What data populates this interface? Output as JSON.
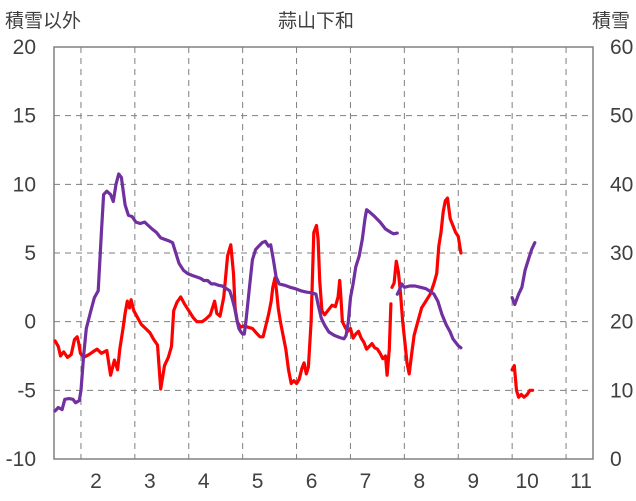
{
  "chart_data": {
    "type": "line",
    "title": "蒜山下和",
    "y_left_label": "積雪以外",
    "y_right_label": "積雪",
    "y_left_range": [
      -10,
      20
    ],
    "y_left_ticks": [
      -10,
      -5,
      0,
      5,
      10,
      15,
      20
    ],
    "y_right_range": [
      0,
      60
    ],
    "y_right_ticks": [
      0,
      10,
      20,
      30,
      40,
      50,
      60
    ],
    "x_range": [
      1.5,
      11.5
    ],
    "x_ticks": [
      2,
      3,
      4,
      5,
      6,
      7,
      8,
      9,
      10,
      11
    ],
    "x_tick_labels": [
      "2",
      "3",
      "4",
      "5",
      "6",
      "7",
      "8",
      "9",
      "10",
      "11"
    ],
    "grid": true,
    "colors": {
      "red_series": "#ff0000",
      "purple_series": "#7030a0",
      "grid": "#7f7f7f",
      "frame": "#808080"
    },
    "series": [
      {
        "axis": "left",
        "color": "#ff0000",
        "segments": [
          [
            [
              1.52,
              -1.4
            ],
            [
              1.58,
              -1.8
            ],
            [
              1.62,
              -2.5
            ],
            [
              1.68,
              -2.2
            ],
            [
              1.75,
              -2.6
            ],
            [
              1.82,
              -2.4
            ],
            [
              1.88,
              -1.3
            ],
            [
              1.93,
              -1.1
            ],
            [
              1.96,
              -1.6
            ],
            [
              1.99,
              -2.3
            ],
            [
              2.05,
              -2.6
            ],
            [
              2.15,
              -2.4
            ],
            [
              2.22,
              -2.2
            ],
            [
              2.3,
              -2.0
            ],
            [
              2.38,
              -2.3
            ],
            [
              2.48,
              -2.1
            ],
            [
              2.55,
              -3.9
            ],
            [
              2.62,
              -2.8
            ],
            [
              2.68,
              -3.5
            ],
            [
              2.72,
              -2.0
            ],
            [
              2.78,
              -0.5
            ],
            [
              2.82,
              0.6
            ],
            [
              2.86,
              1.5
            ],
            [
              2.9,
              1.0
            ],
            [
              2.93,
              1.6
            ],
            [
              2.98,
              0.8
            ],
            [
              3.05,
              0.3
            ],
            [
              3.12,
              -0.2
            ],
            [
              3.2,
              -0.5
            ],
            [
              3.28,
              -0.8
            ],
            [
              3.35,
              -1.3
            ],
            [
              3.42,
              -1.7
            ],
            [
              3.48,
              -4.9
            ],
            [
              3.55,
              -3.2
            ],
            [
              3.62,
              -2.6
            ],
            [
              3.68,
              -1.8
            ],
            [
              3.72,
              0.8
            ],
            [
              3.78,
              1.4
            ],
            [
              3.85,
              1.8
            ],
            [
              3.92,
              1.3
            ],
            [
              4.0,
              0.8
            ],
            [
              4.08,
              0.3
            ],
            [
              4.15,
              0.0
            ],
            [
              4.25,
              0.0
            ],
            [
              4.32,
              0.2
            ],
            [
              4.4,
              0.5
            ],
            [
              4.48,
              1.5
            ],
            [
              4.52,
              0.6
            ],
            [
              4.58,
              0.4
            ],
            [
              4.65,
              1.8
            ],
            [
              4.72,
              4.8
            ],
            [
              4.78,
              5.6
            ],
            [
              4.83,
              3.5
            ],
            [
              4.86,
              1.0
            ],
            [
              4.9,
              0.0
            ],
            [
              4.96,
              -0.4
            ],
            [
              5.03,
              -0.3
            ],
            [
              5.1,
              -0.4
            ],
            [
              5.18,
              -0.5
            ],
            [
              5.25,
              -0.8
            ],
            [
              5.32,
              -1.1
            ],
            [
              5.38,
              -1.1
            ],
            [
              5.43,
              -0.3
            ],
            [
              5.48,
              0.5
            ],
            [
              5.53,
              1.5
            ],
            [
              5.56,
              2.5
            ],
            [
              5.6,
              3.2
            ],
            [
              5.63,
              2.2
            ],
            [
              5.66,
              1.0
            ],
            [
              5.7,
              0.0
            ],
            [
              5.75,
              -1.0
            ],
            [
              5.8,
              -2.0
            ],
            [
              5.85,
              -3.5
            ],
            [
              5.9,
              -4.5
            ],
            [
              5.95,
              -4.3
            ],
            [
              6.0,
              -4.5
            ],
            [
              6.05,
              -4.2
            ],
            [
              6.1,
              -3.4
            ],
            [
              6.14,
              -3.0
            ],
            [
              6.18,
              -3.8
            ],
            [
              6.22,
              -3.3
            ],
            [
              6.27,
              0.0
            ],
            [
              6.32,
              6.5
            ],
            [
              6.37,
              7.0
            ],
            [
              6.4,
              6.0
            ],
            [
              6.43,
              3.0
            ],
            [
              6.47,
              0.8
            ],
            [
              6.52,
              0.5
            ],
            [
              6.6,
              0.9
            ],
            [
              6.66,
              1.2
            ],
            [
              6.72,
              1.1
            ],
            [
              6.77,
              1.8
            ],
            [
              6.8,
              3.0
            ],
            [
              6.82,
              2.0
            ],
            [
              6.85,
              0.0
            ],
            [
              6.9,
              -0.4
            ],
            [
              6.95,
              -0.7
            ],
            [
              7.0,
              -0.5
            ],
            [
              7.05,
              -1.2
            ],
            [
              7.1,
              -0.9
            ],
            [
              7.15,
              -0.7
            ],
            [
              7.2,
              -1.2
            ],
            [
              7.25,
              -1.5
            ],
            [
              7.3,
              -2.0
            ],
            [
              7.35,
              -1.8
            ],
            [
              7.4,
              -1.6
            ],
            [
              7.45,
              -1.9
            ],
            [
              7.5,
              -2.0
            ],
            [
              7.55,
              -2.3
            ],
            [
              7.6,
              -2.7
            ],
            [
              7.65,
              -2.5
            ],
            [
              7.68,
              -3.9
            ],
            [
              7.72,
              -2.0
            ],
            [
              7.75,
              1.3
            ]
          ],
          [
            [
              7.77,
              2.5
            ],
            [
              7.81,
              2.8
            ],
            [
              7.85,
              4.4
            ],
            [
              7.89,
              3.6
            ],
            [
              7.93,
              2.0
            ],
            [
              7.97,
              0.0
            ],
            [
              8.01,
              -1.5
            ],
            [
              8.05,
              -3.0
            ],
            [
              8.09,
              -3.8
            ],
            [
              8.13,
              -2.5
            ],
            [
              8.18,
              -1.0
            ],
            [
              8.25,
              0.0
            ],
            [
              8.32,
              1.0
            ],
            [
              8.4,
              1.5
            ],
            [
              8.48,
              2.0
            ],
            [
              8.55,
              2.8
            ],
            [
              8.6,
              3.5
            ],
            [
              8.64,
              5.5
            ],
            [
              8.68,
              6.5
            ],
            [
              8.72,
              8.0
            ],
            [
              8.76,
              8.8
            ],
            [
              8.8,
              9.0
            ],
            [
              8.85,
              7.5
            ],
            [
              8.9,
              7.0
            ],
            [
              8.95,
              6.5
            ],
            [
              9.0,
              6.2
            ],
            [
              9.05,
              5.0
            ]
          ],
          [
            [
              10.0,
              -3.5
            ],
            [
              10.04,
              -3.2
            ],
            [
              10.08,
              -5.0
            ],
            [
              10.12,
              -5.5
            ],
            [
              10.17,
              -5.3
            ],
            [
              10.22,
              -5.5
            ],
            [
              10.28,
              -5.3
            ],
            [
              10.33,
              -5.0
            ],
            [
              10.38,
              -5.0
            ]
          ]
        ]
      },
      {
        "axis": "right",
        "color": "#7030a0",
        "segments": [
          [
            [
              1.52,
              7.0
            ],
            [
              1.58,
              7.5
            ],
            [
              1.65,
              7.2
            ],
            [
              1.7,
              8.7
            ],
            [
              1.78,
              8.8
            ],
            [
              1.85,
              8.7
            ],
            [
              1.9,
              8.2
            ],
            [
              1.97,
              8.5
            ],
            [
              2.0,
              10.0
            ],
            [
              2.05,
              15.0
            ],
            [
              2.1,
              19.0
            ],
            [
              2.18,
              21.5
            ],
            [
              2.25,
              23.5
            ],
            [
              2.32,
              24.5
            ],
            [
              2.38,
              33.0
            ],
            [
              2.42,
              38.5
            ],
            [
              2.48,
              39.0
            ],
            [
              2.55,
              38.5
            ],
            [
              2.6,
              37.5
            ],
            [
              2.65,
              40.0
            ],
            [
              2.7,
              41.5
            ],
            [
              2.75,
              41.0
            ],
            [
              2.82,
              37.0
            ],
            [
              2.88,
              35.5
            ],
            [
              2.95,
              35.3
            ],
            [
              3.02,
              34.5
            ],
            [
              3.1,
              34.3
            ],
            [
              3.18,
              34.5
            ],
            [
              3.25,
              34.0
            ],
            [
              3.32,
              33.5
            ],
            [
              3.4,
              33.0
            ],
            [
              3.48,
              32.2
            ],
            [
              3.55,
              32.0
            ],
            [
              3.62,
              31.8
            ],
            [
              3.7,
              31.5
            ],
            [
              3.76,
              30.0
            ],
            [
              3.82,
              28.5
            ],
            [
              3.9,
              27.5
            ],
            [
              3.98,
              27.0
            ],
            [
              4.08,
              26.7
            ],
            [
              4.15,
              26.5
            ],
            [
              4.22,
              26.3
            ],
            [
              4.28,
              26.0
            ],
            [
              4.35,
              26.0
            ],
            [
              4.42,
              25.5
            ],
            [
              4.48,
              25.5
            ],
            [
              4.55,
              25.3
            ],
            [
              4.62,
              25.2
            ],
            [
              4.7,
              24.8
            ],
            [
              4.76,
              24.5
            ],
            [
              4.8,
              23.5
            ],
            [
              4.85,
              22.0
            ],
            [
              4.9,
              20.0
            ],
            [
              4.93,
              19.0
            ],
            [
              4.97,
              18.5
            ],
            [
              5.0,
              18.2
            ],
            [
              5.03,
              18.2
            ],
            [
              5.06,
              20.0
            ],
            [
              5.12,
              24.5
            ],
            [
              5.18,
              29.0
            ],
            [
              5.24,
              30.5
            ],
            [
              5.3,
              31.0
            ],
            [
              5.36,
              31.5
            ],
            [
              5.42,
              31.7
            ],
            [
              5.48,
              31.0
            ],
            [
              5.52,
              31.2
            ],
            [
              5.57,
              29.0
            ],
            [
              5.62,
              26.5
            ],
            [
              5.68,
              25.5
            ],
            [
              5.78,
              25.3
            ],
            [
              5.88,
              25.0
            ],
            [
              5.98,
              24.8
            ],
            [
              6.08,
              24.5
            ],
            [
              6.18,
              24.3
            ],
            [
              6.28,
              24.2
            ],
            [
              6.36,
              24.0
            ],
            [
              6.4,
              22.5
            ],
            [
              6.46,
              20.5
            ],
            [
              6.52,
              19.5
            ],
            [
              6.6,
              18.5
            ],
            [
              6.7,
              18.0
            ],
            [
              6.8,
              17.7
            ],
            [
              6.88,
              17.5
            ],
            [
              6.92,
              18.0
            ],
            [
              6.96,
              20.0
            ],
            [
              7.0,
              23.5
            ],
            [
              7.05,
              25.5
            ],
            [
              7.1,
              28.0
            ],
            [
              7.16,
              29.5
            ],
            [
              7.22,
              32.0
            ],
            [
              7.27,
              35.0
            ],
            [
              7.3,
              36.3
            ],
            [
              7.35,
              36.0
            ],
            [
              7.45,
              35.3
            ],
            [
              7.55,
              34.5
            ],
            [
              7.65,
              33.5
            ],
            [
              7.75,
              33.0
            ],
            [
              7.8,
              32.8
            ],
            [
              7.87,
              32.9
            ]
          ],
          [
            [
              7.87,
              24.0
            ],
            [
              7.9,
              24.5
            ],
            [
              7.95,
              25.5
            ],
            [
              8.0,
              25.0
            ],
            [
              8.1,
              25.2
            ],
            [
              8.2,
              25.2
            ],
            [
              8.3,
              25.0
            ],
            [
              8.4,
              24.8
            ],
            [
              8.5,
              24.3
            ],
            [
              8.55,
              24.0
            ],
            [
              8.62,
              23.0
            ],
            [
              8.7,
              21.0
            ],
            [
              8.78,
              19.5
            ],
            [
              8.85,
              18.5
            ],
            [
              8.9,
              17.5
            ],
            [
              8.95,
              17.0
            ],
            [
              9.0,
              16.5
            ],
            [
              9.05,
              16.2
            ]
          ],
          [
            [
              10.0,
              23.5
            ],
            [
              10.05,
              22.5
            ],
            [
              10.12,
              24.0
            ],
            [
              10.18,
              25.0
            ],
            [
              10.24,
              27.5
            ],
            [
              10.3,
              29.0
            ],
            [
              10.36,
              30.5
            ],
            [
              10.42,
              31.5
            ]
          ]
        ]
      }
    ]
  }
}
